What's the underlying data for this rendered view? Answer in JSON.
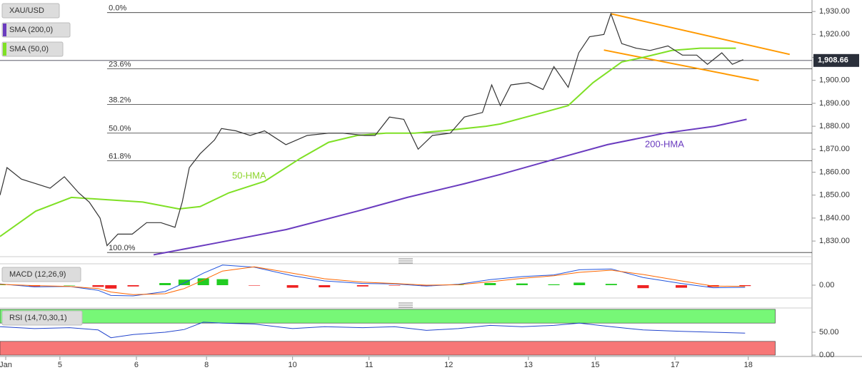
{
  "chart_data": [
    {
      "type": "line",
      "xlim": [
        -1.8,
        253
      ],
      "xticks": [
        {
          "value": 0,
          "label": "Jan"
        },
        {
          "value": 17,
          "label": "5"
        },
        {
          "value": 41,
          "label": "6"
        },
        {
          "value": 63,
          "label": "8"
        },
        {
          "value": 90,
          "label": "10"
        },
        {
          "value": 114,
          "label": "11"
        },
        {
          "value": 139,
          "label": "12"
        },
        {
          "value": 164,
          "label": "13"
        },
        {
          "value": 185,
          "label": "15"
        },
        {
          "value": 210,
          "label": "17"
        },
        {
          "value": 233,
          "label": "18"
        }
      ],
      "ylim": [
        1823.2,
        1935
      ],
      "yticks": [
        {
          "value": 1830,
          "label": "1,830.00"
        },
        {
          "value": 1840,
          "label": "1,840.00"
        },
        {
          "value": 1850,
          "label": "1,850.00"
        },
        {
          "value": 1860,
          "label": "1,860.00"
        },
        {
          "value": 1870,
          "label": "1,870.00"
        },
        {
          "value": 1880,
          "label": "1,880.00"
        },
        {
          "value": 1890,
          "label": "1,890.00"
        },
        {
          "value": 1900,
          "label": "1,900.00"
        },
        {
          "value": 1910,
          "label": "1,910.00"
        },
        {
          "value": 1920,
          "label": "1,920.00"
        },
        {
          "value": 1930,
          "label": "1,930.00"
        }
      ],
      "series": [
        {
          "name": "XAU/USD",
          "color": "#333333",
          "x": [
            -1.8,
            0.4,
            4.9,
            9.4,
            13.9,
            18.4,
            22.9,
            26.2,
            29.6,
            31.8,
            35.2,
            39.7,
            44.2,
            48.7,
            53.1,
            55.4,
            57.6,
            61.0,
            65.5,
            67.7,
            72.2,
            76.7,
            81.2,
            87.9,
            94.6,
            101.3,
            105.8,
            112.6,
            115.9,
            120.4,
            124.9,
            129.4,
            133.9,
            139.5,
            143.9,
            149.6,
            152.5,
            155.2,
            158.5,
            164.1,
            168.6,
            172.0,
            176.5,
            179.8,
            183.2,
            187.7,
            189.9,
            193.3,
            197.8,
            202.2,
            207.8,
            212.3,
            216.8,
            220.2,
            224.7,
            228.0,
            231.4
          ],
          "values": [
            1850,
            1862,
            1857,
            1855,
            1853,
            1858,
            1851,
            1847,
            1840,
            1828,
            1833,
            1833,
            1838,
            1838,
            1836,
            1847,
            1862,
            1868,
            1874,
            1879,
            1878,
            1876,
            1878,
            1872,
            1876,
            1877,
            1877,
            1876,
            1876,
            1884,
            1883,
            1870,
            1876,
            1877,
            1884,
            1886,
            1898,
            1889,
            1898,
            1899,
            1896,
            1906,
            1897,
            1912,
            1919,
            1920,
            1929,
            1916,
            1914,
            1913,
            1915,
            1911,
            1911,
            1907,
            1912,
            1907,
            1909
          ]
        },
        {
          "name": "SMA (200,0)",
          "color": "#6a3bbf",
          "x": [
            46.4,
            65.5,
            88.0,
            110.3,
            126.0,
            144.0,
            155.2,
            173.1,
            188.8,
            206.7,
            222.4,
            232.5
          ],
          "values": [
            1824,
            1829,
            1835,
            1843,
            1849,
            1855,
            1859,
            1866,
            1872,
            1877,
            1880,
            1883
          ]
        },
        {
          "name": "SMA (50,0)",
          "color": "#7fe025",
          "x": [
            -1.8,
            9.4,
            20.6,
            31.8,
            43.0,
            54.3,
            61.0,
            70.0,
            81.2,
            92.4,
            101.3,
            110.3,
            119.3,
            128.3,
            137.2,
            150.7,
            155.2,
            168.6,
            176.5,
            184.3,
            193.3,
            200.0,
            209.0,
            217.9,
            224.7,
            229.1
          ],
          "values": [
            1832,
            1843,
            1849,
            1848,
            1847,
            1844,
            1845,
            1851,
            1856,
            1866,
            1873,
            1876,
            1877,
            1877,
            1878,
            1880,
            1881,
            1886,
            1889,
            1899,
            1908,
            1910,
            1913,
            1914,
            1914,
            1914
          ]
        }
      ],
      "annotations": [
        "50-HMA",
        "200-HMA"
      ],
      "levels": [
        {
          "label": "0.0%",
          "value": 1929.5
        },
        {
          "label": "23.6%",
          "value": 1905
        },
        {
          "label": "38.2%",
          "value": 1889.5
        },
        {
          "label": "50.0%",
          "value": 1877
        },
        {
          "label": "61.8%",
          "value": 1865
        },
        {
          "label": "100.0%",
          "value": 1825
        }
      ],
      "trendlines": [
        {
          "color": "#ff9900",
          "x": [
            189.9,
            246
          ],
          "values": [
            1929,
            1911.3
          ]
        },
        {
          "color": "#ff9900",
          "x": [
            187.7,
            236.3
          ],
          "values": [
            1913.2,
            1899.9
          ]
        }
      ],
      "last_price": {
        "value": 1908.66,
        "label": "1,908.66"
      }
    },
    {
      "type": "macd",
      "title": "MACD (12,26,9)",
      "ylim": [
        -3,
        5
      ],
      "yticks": [
        {
          "value": 0,
          "label": "0.00"
        }
      ],
      "x": [
        -1.8,
        9,
        20,
        29,
        33,
        40,
        50,
        56,
        62,
        68,
        78,
        90,
        100,
        112,
        122,
        132,
        142,
        152,
        162,
        172,
        180,
        190,
        200,
        212,
        222,
        232
      ],
      "series": [
        {
          "color": "#2255dd",
          "values": [
            0.3,
            -0.4,
            -0.3,
            -1.2,
            -2.4,
            -2.5,
            -1.5,
            0.5,
            2.8,
            4.7,
            4.2,
            2.2,
            1.0,
            0.4,
            0.3,
            -0.2,
            0.2,
            1.3,
            2.0,
            2.4,
            3.6,
            3.8,
            1.8,
            0.4,
            -0.6,
            -0.5
          ]
        },
        {
          "color": "#ff6600",
          "values": [
            0.2,
            -0.1,
            -0.3,
            -0.8,
            -1.6,
            -2.2,
            -2.0,
            -0.8,
            1.2,
            3.3,
            4.3,
            2.8,
            1.5,
            0.7,
            0.4,
            0.0,
            0.1,
            0.8,
            1.6,
            2.2,
            3.0,
            3.5,
            2.5,
            1.0,
            -0.2,
            -0.3
          ]
        }
      ],
      "histogram": [
        0.1,
        -0.3,
        0.0,
        -0.4,
        -0.8,
        -0.3,
        0.5,
        1.3,
        1.6,
        1.4,
        -0.1,
        -0.6,
        -0.5,
        -0.3,
        -0.1,
        -0.2,
        0.1,
        0.5,
        0.4,
        0.2,
        0.6,
        0.3,
        -0.7,
        -0.6,
        -0.4,
        -0.2
      ],
      "histogram_colors": [
        "#22cc22",
        "#ee2222"
      ]
    },
    {
      "type": "rsi",
      "title": "RSI (14,70,30,1)",
      "ylim": [
        -3,
        103
      ],
      "yticks": [
        {
          "value": 50,
          "label": "50.00"
        },
        {
          "value": 0,
          "label": "0.00"
        }
      ],
      "upper_band": [
        70,
        100
      ],
      "lower_band": [
        0,
        30
      ],
      "band_colors": [
        "#77f777",
        "#f77777"
      ],
      "x": [
        -1.8,
        9,
        20,
        29,
        33,
        40,
        50,
        56,
        62,
        68,
        78,
        90,
        100,
        112,
        122,
        132,
        142,
        152,
        162,
        172,
        180,
        190,
        200,
        212,
        222,
        232
      ],
      "series": [
        {
          "color": "#2244cc",
          "values": [
            62,
            58,
            60,
            55,
            38,
            45,
            50,
            56,
            72,
            70,
            68,
            58,
            62,
            60,
            62,
            54,
            58,
            65,
            62,
            65,
            70,
            62,
            55,
            52,
            50,
            48
          ]
        }
      ]
    }
  ]
}
